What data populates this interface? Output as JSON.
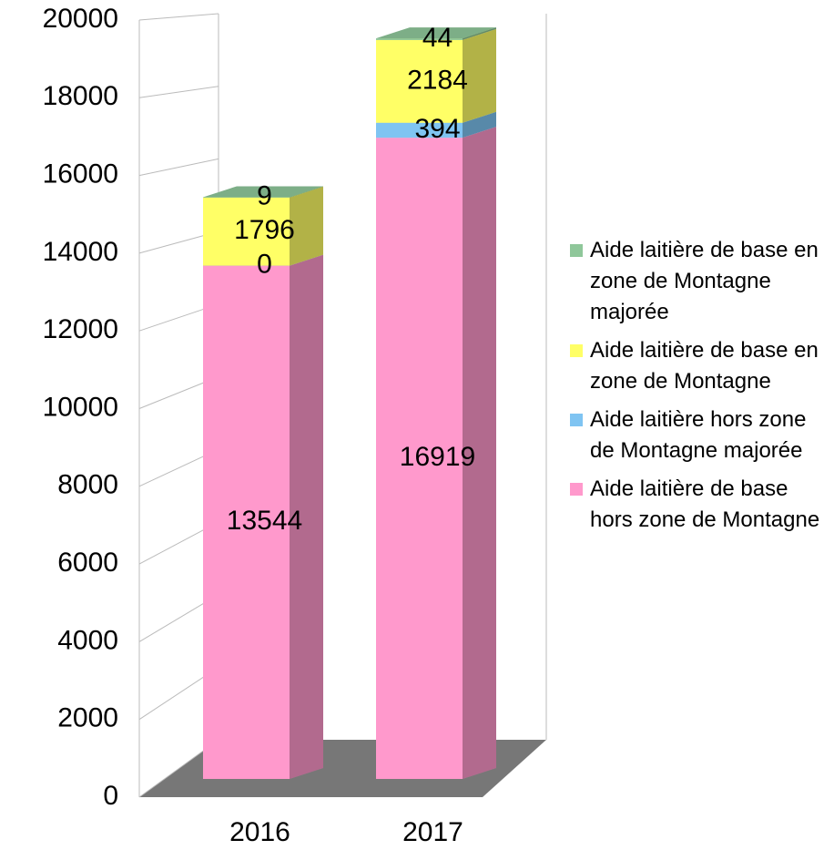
{
  "chart_data": {
    "type": "bar3d_stacked",
    "categories": [
      "2016",
      "2017"
    ],
    "series": [
      {
        "name": "Aide laitière de base hors zone de Montagne",
        "color": "#ff99cc",
        "values": [
          13544,
          16919
        ]
      },
      {
        "name": "Aide laitière hors zone de Montagne majorée",
        "color": "#7fc4f2",
        "values": [
          0,
          394
        ]
      },
      {
        "name": "Aide laitière de base en zone de Montagne",
        "color": "#ffff66",
        "values": [
          1796,
          2184
        ]
      },
      {
        "name": "Aide laitière de base en zone de Montagne majorée",
        "color": "#8fc79a",
        "values": [
          9,
          44
        ]
      }
    ],
    "ylim": [
      0,
      20000
    ],
    "yticks": [
      0,
      2000,
      4000,
      6000,
      8000,
      10000,
      12000,
      14000,
      16000,
      18000,
      20000
    ],
    "grid": true
  }
}
